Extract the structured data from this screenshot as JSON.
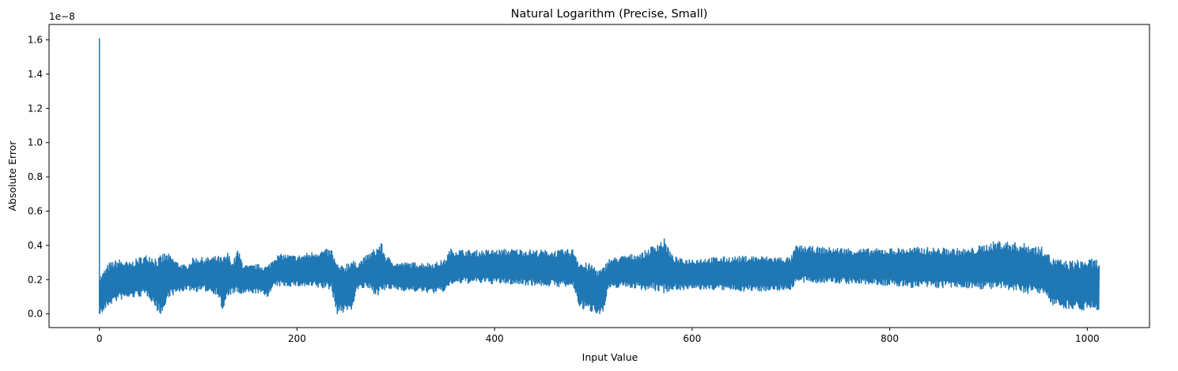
{
  "chart_data": {
    "type": "line",
    "title": "Natural Logarithm (Precise, Small)",
    "xlabel": "Input Value",
    "ylabel": "Absolute Error",
    "offset_text": "1e−8",
    "y_scale_exponent": -8,
    "xlim": [
      -51,
      1063
    ],
    "ylim": [
      -0.08,
      1.69
    ],
    "x_ticks": [
      0,
      200,
      400,
      600,
      800,
      1000
    ],
    "x_tick_labels": [
      "0",
      "200",
      "400",
      "600",
      "800",
      "1000"
    ],
    "y_ticks": [
      0.0,
      0.2,
      0.4,
      0.6,
      0.8,
      1.0,
      1.2,
      1.4,
      1.6
    ],
    "y_tick_labels": [
      "0.0",
      "0.2",
      "0.4",
      "0.6",
      "0.8",
      "1.0",
      "1.2",
      "1.4",
      "1.6"
    ],
    "grid": false,
    "legend": "none",
    "series": [
      {
        "color": "#1f77b4",
        "spike": {
          "x": 0,
          "y": 1.61
        },
        "envelope": {
          "x": [
            0,
            3,
            10,
            20,
            30,
            40,
            50,
            60,
            65,
            70,
            80,
            88,
            95,
            110,
            120,
            125,
            130,
            135,
            140,
            145,
            150,
            160,
            170,
            178,
            185,
            200,
            220,
            235,
            240,
            245,
            250,
            255,
            260,
            270,
            280,
            285,
            290,
            300,
            320,
            340,
            350,
            355,
            380,
            420,
            460,
            480,
            485,
            490,
            500,
            505,
            510,
            515,
            530,
            550,
            565,
            572,
            580,
            590,
            620,
            660,
            700,
            705,
            730,
            780,
            830,
            880,
            910,
            940,
            960,
            962,
            980,
            1000,
            1012
          ],
          "high": [
            0.22,
            0.24,
            0.3,
            0.32,
            0.3,
            0.33,
            0.35,
            0.33,
            0.36,
            0.35,
            0.3,
            0.28,
            0.33,
            0.33,
            0.34,
            0.33,
            0.36,
            0.3,
            0.38,
            0.3,
            0.28,
            0.29,
            0.28,
            0.34,
            0.35,
            0.34,
            0.37,
            0.38,
            0.3,
            0.28,
            0.3,
            0.33,
            0.29,
            0.34,
            0.39,
            0.42,
            0.34,
            0.3,
            0.3,
            0.3,
            0.32,
            0.38,
            0.37,
            0.38,
            0.37,
            0.38,
            0.32,
            0.3,
            0.29,
            0.26,
            0.27,
            0.32,
            0.34,
            0.36,
            0.42,
            0.44,
            0.34,
            0.32,
            0.33,
            0.34,
            0.33,
            0.4,
            0.39,
            0.38,
            0.39,
            0.38,
            0.43,
            0.41,
            0.38,
            0.33,
            0.31,
            0.32,
            0.32
          ],
          "low": [
            0.0,
            0.0,
            0.05,
            0.08,
            0.09,
            0.1,
            0.1,
            0.0,
            0.0,
            0.1,
            0.12,
            0.14,
            0.13,
            0.13,
            0.11,
            0.0,
            0.1,
            0.12,
            0.11,
            0.11,
            0.12,
            0.12,
            0.1,
            0.16,
            0.16,
            0.16,
            0.15,
            0.14,
            0.0,
            0.0,
            0.02,
            0.0,
            0.14,
            0.15,
            0.11,
            0.11,
            0.14,
            0.14,
            0.13,
            0.12,
            0.13,
            0.17,
            0.18,
            0.17,
            0.16,
            0.15,
            0.05,
            0.02,
            0.01,
            0.0,
            0.0,
            0.14,
            0.16,
            0.14,
            0.13,
            0.12,
            0.14,
            0.14,
            0.14,
            0.13,
            0.14,
            0.18,
            0.18,
            0.17,
            0.15,
            0.15,
            0.14,
            0.12,
            0.11,
            0.05,
            0.03,
            0.02,
            0.02
          ]
        }
      }
    ]
  }
}
